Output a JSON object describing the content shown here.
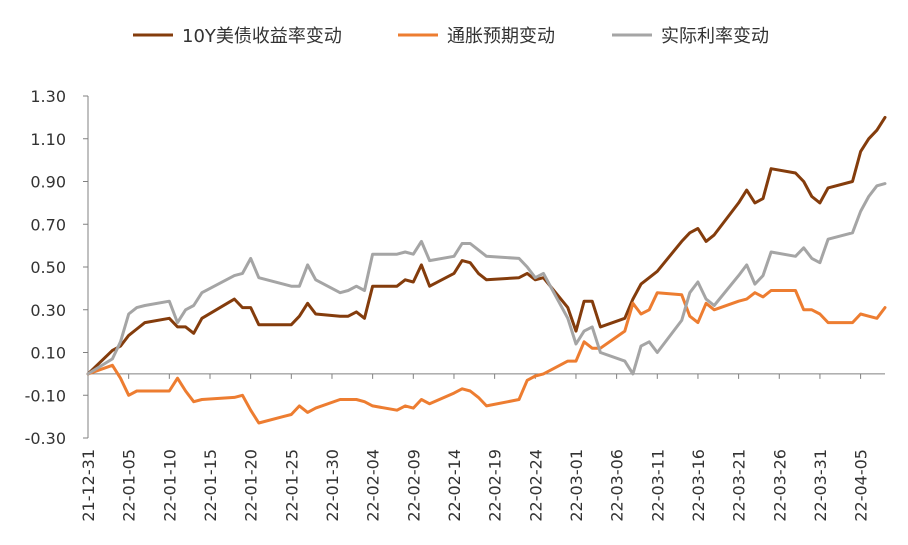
{
  "colors": {
    "yield": "#843C0C",
    "inflation": "#ED7D31",
    "real": "#A5A5A5",
    "axis": "#808080",
    "text": "#333333"
  },
  "chart_data": {
    "type": "line",
    "title": "",
    "xlabel": "",
    "ylabel": "",
    "ylim": [
      -0.3,
      1.3
    ],
    "grid": false,
    "legend_position": "top",
    "y_ticks": [
      "1.30",
      "1.10",
      "0.90",
      "0.70",
      "0.50",
      "0.30",
      "0.10",
      "-0.10",
      "-0.30"
    ],
    "y_tick_values": [
      1.3,
      1.1,
      0.9,
      0.7,
      0.5,
      0.3,
      0.1,
      -0.1,
      -0.3
    ],
    "x_tick_labels": [
      "21-12-31",
      "22-01-05",
      "22-01-10",
      "22-01-15",
      "22-01-20",
      "22-01-25",
      "22-01-30",
      "22-02-04",
      "22-02-09",
      "22-02-14",
      "22-02-19",
      "22-02-24",
      "22-03-01",
      "22-03-06",
      "22-03-11",
      "22-03-16",
      "22-03-21",
      "22-03-26",
      "22-03-31",
      "22-04-05"
    ],
    "x_domain": [
      "2021-12-31",
      "2022-04-08"
    ],
    "series": [
      {
        "name": "10Y美债收益率变动",
        "color_key": "yield",
        "points": [
          [
            "2021-12-31",
            0.0
          ],
          [
            "2022-01-03",
            0.11
          ],
          [
            "2022-01-04",
            0.13
          ],
          [
            "2022-01-05",
            0.18
          ],
          [
            "2022-01-06",
            0.21
          ],
          [
            "2022-01-07",
            0.24
          ],
          [
            "2022-01-10",
            0.26
          ],
          [
            "2022-01-11",
            0.22
          ],
          [
            "2022-01-12",
            0.22
          ],
          [
            "2022-01-13",
            0.19
          ],
          [
            "2022-01-14",
            0.26
          ],
          [
            "2022-01-18",
            0.35
          ],
          [
            "2022-01-19",
            0.31
          ],
          [
            "2022-01-20",
            0.31
          ],
          [
            "2022-01-21",
            0.23
          ],
          [
            "2022-01-24",
            0.23
          ],
          [
            "2022-01-25",
            0.23
          ],
          [
            "2022-01-26",
            0.27
          ],
          [
            "2022-01-27",
            0.33
          ],
          [
            "2022-01-28",
            0.28
          ],
          [
            "2022-01-31",
            0.27
          ],
          [
            "2022-02-01",
            0.27
          ],
          [
            "2022-02-02",
            0.29
          ],
          [
            "2022-02-03",
            0.26
          ],
          [
            "2022-02-04",
            0.41
          ],
          [
            "2022-02-07",
            0.41
          ],
          [
            "2022-02-08",
            0.44
          ],
          [
            "2022-02-09",
            0.43
          ],
          [
            "2022-02-10",
            0.51
          ],
          [
            "2022-02-11",
            0.41
          ],
          [
            "2022-02-14",
            0.47
          ],
          [
            "2022-02-15",
            0.53
          ],
          [
            "2022-02-16",
            0.52
          ],
          [
            "2022-02-17",
            0.47
          ],
          [
            "2022-02-18",
            0.44
          ],
          [
            "2022-02-22",
            0.45
          ],
          [
            "2022-02-23",
            0.47
          ],
          [
            "2022-02-24",
            0.44
          ],
          [
            "2022-02-25",
            0.45
          ],
          [
            "2022-02-28",
            0.31
          ],
          [
            "2022-03-01",
            0.2
          ],
          [
            "2022-03-02",
            0.34
          ],
          [
            "2022-03-03",
            0.34
          ],
          [
            "2022-03-04",
            0.22
          ],
          [
            "2022-03-07",
            0.26
          ],
          [
            "2022-03-08",
            0.35
          ],
          [
            "2022-03-09",
            0.42
          ],
          [
            "2022-03-10",
            0.45
          ],
          [
            "2022-03-11",
            0.48
          ],
          [
            "2022-03-14",
            0.62
          ],
          [
            "2022-03-15",
            0.66
          ],
          [
            "2022-03-16",
            0.68
          ],
          [
            "2022-03-17",
            0.62
          ],
          [
            "2022-03-18",
            0.65
          ],
          [
            "2022-03-21",
            0.8
          ],
          [
            "2022-03-22",
            0.86
          ],
          [
            "2022-03-23",
            0.8
          ],
          [
            "2022-03-24",
            0.82
          ],
          [
            "2022-03-25",
            0.96
          ],
          [
            "2022-03-28",
            0.94
          ],
          [
            "2022-03-29",
            0.9
          ],
          [
            "2022-03-30",
            0.83
          ],
          [
            "2022-03-31",
            0.8
          ],
          [
            "2022-04-01",
            0.87
          ],
          [
            "2022-04-04",
            0.9
          ],
          [
            "2022-04-05",
            1.04
          ],
          [
            "2022-04-06",
            1.1
          ],
          [
            "2022-04-07",
            1.14
          ],
          [
            "2022-04-08",
            1.2
          ]
        ]
      },
      {
        "name": "通胀预期变动",
        "color_key": "inflation",
        "points": [
          [
            "2021-12-31",
            0.0
          ],
          [
            "2022-01-03",
            0.04
          ],
          [
            "2022-01-04",
            -0.02
          ],
          [
            "2022-01-05",
            -0.1
          ],
          [
            "2022-01-06",
            -0.08
          ],
          [
            "2022-01-07",
            -0.08
          ],
          [
            "2022-01-10",
            -0.08
          ],
          [
            "2022-01-11",
            -0.02
          ],
          [
            "2022-01-12",
            -0.08
          ],
          [
            "2022-01-13",
            -0.13
          ],
          [
            "2022-01-14",
            -0.12
          ],
          [
            "2022-01-18",
            -0.11
          ],
          [
            "2022-01-19",
            -0.1
          ],
          [
            "2022-01-20",
            -0.17
          ],
          [
            "2022-01-21",
            -0.23
          ],
          [
            "2022-01-24",
            -0.2
          ],
          [
            "2022-01-25",
            -0.19
          ],
          [
            "2022-01-26",
            -0.15
          ],
          [
            "2022-01-27",
            -0.18
          ],
          [
            "2022-01-28",
            -0.16
          ],
          [
            "2022-01-31",
            -0.12
          ],
          [
            "2022-02-01",
            -0.12
          ],
          [
            "2022-02-02",
            -0.12
          ],
          [
            "2022-02-03",
            -0.13
          ],
          [
            "2022-02-04",
            -0.15
          ],
          [
            "2022-02-07",
            -0.17
          ],
          [
            "2022-02-08",
            -0.15
          ],
          [
            "2022-02-09",
            -0.16
          ],
          [
            "2022-02-10",
            -0.12
          ],
          [
            "2022-02-11",
            -0.14
          ],
          [
            "2022-02-14",
            -0.09
          ],
          [
            "2022-02-15",
            -0.07
          ],
          [
            "2022-02-16",
            -0.08
          ],
          [
            "2022-02-17",
            -0.11
          ],
          [
            "2022-02-18",
            -0.15
          ],
          [
            "2022-02-22",
            -0.12
          ],
          [
            "2022-02-23",
            -0.03
          ],
          [
            "2022-02-24",
            -0.01
          ],
          [
            "2022-02-25",
            0.0
          ],
          [
            "2022-02-28",
            0.06
          ],
          [
            "2022-03-01",
            0.06
          ],
          [
            "2022-03-02",
            0.15
          ],
          [
            "2022-03-03",
            0.12
          ],
          [
            "2022-03-04",
            0.12
          ],
          [
            "2022-03-07",
            0.2
          ],
          [
            "2022-03-08",
            0.33
          ],
          [
            "2022-03-09",
            0.28
          ],
          [
            "2022-03-10",
            0.3
          ],
          [
            "2022-03-11",
            0.38
          ],
          [
            "2022-03-14",
            0.37
          ],
          [
            "2022-03-15",
            0.27
          ],
          [
            "2022-03-16",
            0.24
          ],
          [
            "2022-03-17",
            0.33
          ],
          [
            "2022-03-18",
            0.3
          ],
          [
            "2022-03-21",
            0.34
          ],
          [
            "2022-03-22",
            0.35
          ],
          [
            "2022-03-23",
            0.38
          ],
          [
            "2022-03-24",
            0.36
          ],
          [
            "2022-03-25",
            0.39
          ],
          [
            "2022-03-28",
            0.39
          ],
          [
            "2022-03-29",
            0.3
          ],
          [
            "2022-03-30",
            0.3
          ],
          [
            "2022-03-31",
            0.28
          ],
          [
            "2022-04-01",
            0.24
          ],
          [
            "2022-04-04",
            0.24
          ],
          [
            "2022-04-05",
            0.28
          ],
          [
            "2022-04-06",
            0.27
          ],
          [
            "2022-04-07",
            0.26
          ],
          [
            "2022-04-08",
            0.31
          ]
        ]
      },
      {
        "name": "实际利率变动",
        "color_key": "real",
        "points": [
          [
            "2021-12-31",
            0.0
          ],
          [
            "2022-01-03",
            0.07
          ],
          [
            "2022-01-04",
            0.15
          ],
          [
            "2022-01-05",
            0.28
          ],
          [
            "2022-01-06",
            0.31
          ],
          [
            "2022-01-07",
            0.32
          ],
          [
            "2022-01-10",
            0.34
          ],
          [
            "2022-01-11",
            0.24
          ],
          [
            "2022-01-12",
            0.3
          ],
          [
            "2022-01-13",
            0.32
          ],
          [
            "2022-01-14",
            0.38
          ],
          [
            "2022-01-18",
            0.46
          ],
          [
            "2022-01-19",
            0.47
          ],
          [
            "2022-01-20",
            0.54
          ],
          [
            "2022-01-21",
            0.45
          ],
          [
            "2022-01-24",
            0.42
          ],
          [
            "2022-01-25",
            0.41
          ],
          [
            "2022-01-26",
            0.41
          ],
          [
            "2022-01-27",
            0.51
          ],
          [
            "2022-01-28",
            0.44
          ],
          [
            "2022-01-31",
            0.38
          ],
          [
            "2022-02-01",
            0.39
          ],
          [
            "2022-02-02",
            0.41
          ],
          [
            "2022-02-03",
            0.39
          ],
          [
            "2022-02-04",
            0.56
          ],
          [
            "2022-02-07",
            0.56
          ],
          [
            "2022-02-08",
            0.57
          ],
          [
            "2022-02-09",
            0.56
          ],
          [
            "2022-02-10",
            0.62
          ],
          [
            "2022-02-11",
            0.53
          ],
          [
            "2022-02-14",
            0.55
          ],
          [
            "2022-02-15",
            0.61
          ],
          [
            "2022-02-16",
            0.61
          ],
          [
            "2022-02-17",
            0.58
          ],
          [
            "2022-02-18",
            0.55
          ],
          [
            "2022-02-22",
            0.54
          ],
          [
            "2022-02-23",
            0.5
          ],
          [
            "2022-02-24",
            0.45
          ],
          [
            "2022-02-25",
            0.47
          ],
          [
            "2022-02-28",
            0.26
          ],
          [
            "2022-03-01",
            0.14
          ],
          [
            "2022-03-02",
            0.2
          ],
          [
            "2022-03-03",
            0.22
          ],
          [
            "2022-03-04",
            0.1
          ],
          [
            "2022-03-07",
            0.06
          ],
          [
            "2022-03-08",
            0.0
          ],
          [
            "2022-03-09",
            0.13
          ],
          [
            "2022-03-10",
            0.15
          ],
          [
            "2022-03-11",
            0.1
          ],
          [
            "2022-03-14",
            0.25
          ],
          [
            "2022-03-15",
            0.38
          ],
          [
            "2022-03-16",
            0.43
          ],
          [
            "2022-03-17",
            0.35
          ],
          [
            "2022-03-18",
            0.32
          ],
          [
            "2022-03-21",
            0.46
          ],
          [
            "2022-03-22",
            0.51
          ],
          [
            "2022-03-23",
            0.42
          ],
          [
            "2022-03-24",
            0.46
          ],
          [
            "2022-03-25",
            0.57
          ],
          [
            "2022-03-28",
            0.55
          ],
          [
            "2022-03-29",
            0.59
          ],
          [
            "2022-03-30",
            0.54
          ],
          [
            "2022-03-31",
            0.52
          ],
          [
            "2022-04-01",
            0.63
          ],
          [
            "2022-04-04",
            0.66
          ],
          [
            "2022-04-05",
            0.76
          ],
          [
            "2022-04-06",
            0.83
          ],
          [
            "2022-04-07",
            0.88
          ],
          [
            "2022-04-08",
            0.89
          ]
        ]
      }
    ]
  }
}
